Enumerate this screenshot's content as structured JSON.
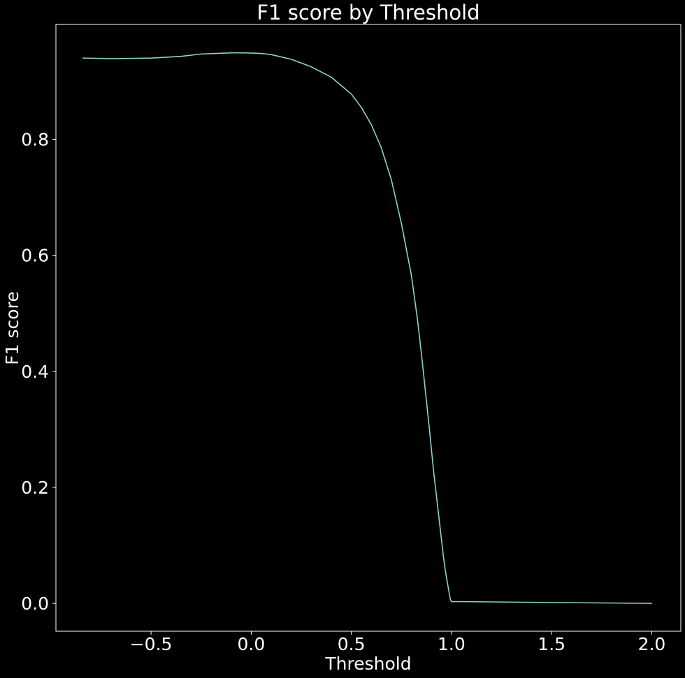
{
  "chart_data": {
    "type": "line",
    "title": "F1 score by Threshold",
    "xlabel": "Threshold",
    "ylabel": "F1 score",
    "xlim": [
      -0.975,
      2.145
    ],
    "ylim": [
      -0.048,
      0.998
    ],
    "grid": false,
    "colors": {
      "background": "#000000",
      "foreground": "#ffffff",
      "line": "#8dd3c7"
    },
    "x_ticks": [
      {
        "value": -0.5,
        "label": "−0.5"
      },
      {
        "value": 0.0,
        "label": "0.0"
      },
      {
        "value": 0.5,
        "label": "0.5"
      },
      {
        "value": 1.0,
        "label": "1.0"
      },
      {
        "value": 1.5,
        "label": "1.5"
      },
      {
        "value": 2.0,
        "label": "2.0"
      }
    ],
    "y_ticks": [
      {
        "value": 0.0,
        "label": "0.0"
      },
      {
        "value": 0.2,
        "label": "0.2"
      },
      {
        "value": 0.4,
        "label": "0.4"
      },
      {
        "value": 0.6,
        "label": "0.6"
      },
      {
        "value": 0.8,
        "label": "0.8"
      }
    ],
    "series": [
      {
        "x": [
          -0.84,
          -0.7,
          -0.5,
          -0.35,
          -0.25,
          -0.1,
          -0.03,
          0.05,
          0.1,
          0.2,
          0.3,
          0.4,
          0.5,
          0.55,
          0.6,
          0.65,
          0.7,
          0.75,
          0.8,
          0.83,
          0.85,
          0.87,
          0.89,
          0.9,
          0.91,
          0.92,
          0.93,
          0.94,
          0.95,
          0.96,
          0.97,
          0.98,
          0.99,
          0.995,
          1.0,
          1.05,
          1.5,
          2.0
        ],
        "y": [
          0.94,
          0.939,
          0.94,
          0.943,
          0.947,
          0.949,
          0.949,
          0.948,
          0.946,
          0.938,
          0.925,
          0.907,
          0.878,
          0.855,
          0.825,
          0.785,
          0.73,
          0.655,
          0.565,
          0.49,
          0.43,
          0.365,
          0.3,
          0.265,
          0.23,
          0.2,
          0.17,
          0.14,
          0.11,
          0.08,
          0.055,
          0.035,
          0.015,
          0.006,
          0.003,
          0.003,
          0.0015,
          0.0
        ]
      }
    ]
  }
}
